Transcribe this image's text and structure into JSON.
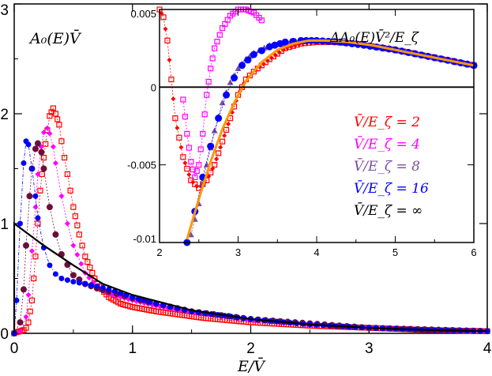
{
  "chart_data": [
    {
      "type": "scatter",
      "title": "",
      "xlabel": "E/V̄",
      "ylabel": "",
      "xlim": [
        0,
        4
      ],
      "ylim": [
        0,
        3
      ],
      "grid": false,
      "annotation": "A₀(E)V̄",
      "x_ticks": [
        "0",
        "1",
        "2",
        "3",
        "4"
      ],
      "y_ticks": [
        "0",
        "1",
        "2",
        "3"
      ],
      "series": [
        {
          "name": "V̄/E_ζ = 2",
          "color": "#ff0000",
          "x": [
            0.0,
            0.02,
            0.05,
            0.08,
            0.1,
            0.12,
            0.15,
            0.18,
            0.2,
            0.22,
            0.25,
            0.28,
            0.3,
            0.33,
            0.35,
            0.38,
            0.4,
            0.45,
            0.5,
            0.55,
            0.6,
            0.7,
            0.8,
            0.9,
            1.0,
            1.2,
            1.4,
            1.6,
            1.8,
            2.0,
            2.5,
            3.0,
            3.5,
            4.0
          ],
          "y": [
            0.0,
            0.01,
            0.02,
            0.03,
            0.05,
            0.1,
            0.3,
            0.7,
            1.0,
            1.3,
            1.6,
            1.85,
            1.98,
            2.05,
            2.0,
            1.9,
            1.75,
            1.45,
            1.15,
            0.9,
            0.7,
            0.45,
            0.33,
            0.27,
            0.24,
            0.2,
            0.17,
            0.14,
            0.12,
            0.1,
            0.07,
            0.05,
            0.03,
            0.02
          ]
        },
        {
          "name": "V̄/E_ζ = 4",
          "color": "#ff00ff",
          "x": [
            0.0,
            0.05,
            0.1,
            0.12,
            0.15,
            0.18,
            0.2,
            0.23,
            0.25,
            0.28,
            0.3,
            0.33,
            0.35,
            0.4,
            0.45,
            0.5,
            0.6,
            0.7,
            0.8,
            1.0,
            1.2,
            1.5,
            2.0,
            2.5,
            3.0,
            4.0
          ],
          "y": [
            0.0,
            0.02,
            0.15,
            0.35,
            0.75,
            1.15,
            1.45,
            1.7,
            1.83,
            1.87,
            1.82,
            1.7,
            1.55,
            1.25,
            1.0,
            0.8,
            0.55,
            0.42,
            0.36,
            0.3,
            0.25,
            0.19,
            0.12,
            0.08,
            0.05,
            0.02
          ]
        },
        {
          "name": "V̄/E_ζ = 8",
          "color": "#6b0f3a",
          "x": [
            0.0,
            0.05,
            0.08,
            0.1,
            0.13,
            0.15,
            0.18,
            0.2,
            0.23,
            0.25,
            0.3,
            0.35,
            0.4,
            0.5,
            0.6,
            0.7,
            0.8,
            1.0,
            1.2,
            1.5,
            2.0,
            2.5,
            3.0,
            4.0
          ],
          "y": [
            0.0,
            0.1,
            0.4,
            0.8,
            1.25,
            1.5,
            1.68,
            1.73,
            1.65,
            1.5,
            1.15,
            0.9,
            0.72,
            0.53,
            0.45,
            0.41,
            0.38,
            0.32,
            0.27,
            0.2,
            0.13,
            0.09,
            0.05,
            0.02
          ]
        },
        {
          "name": "V̄/E_ζ = 16",
          "color": "#0000ff",
          "x": [
            0.0,
            0.02,
            0.05,
            0.08,
            0.1,
            0.12,
            0.15,
            0.18,
            0.2,
            0.25,
            0.3,
            0.35,
            0.4,
            0.5,
            0.6,
            0.7,
            0.8,
            1.0,
            1.2,
            1.5,
            2.0,
            2.5,
            3.0,
            3.5,
            4.0
          ],
          "y": [
            0.0,
            0.3,
            1.0,
            1.55,
            1.75,
            1.72,
            1.5,
            1.25,
            1.05,
            0.78,
            0.62,
            0.54,
            0.5,
            0.47,
            0.45,
            0.43,
            0.4,
            0.33,
            0.27,
            0.2,
            0.13,
            0.08,
            0.05,
            0.03,
            0.02
          ]
        },
        {
          "name": "V̄/E_ζ = ∞",
          "color": "#000000",
          "x": [
            0.0,
            0.0,
            0.25,
            0.5,
            0.75,
            1.0,
            1.25,
            1.5,
            2.0,
            2.5,
            3.0,
            3.5,
            4.0
          ],
          "y": [
            0.0,
            1.0,
            0.8,
            0.62,
            0.45,
            0.35,
            0.28,
            0.21,
            0.13,
            0.08,
            0.05,
            0.03,
            0.02
          ]
        }
      ]
    },
    {
      "type": "scatter",
      "title": "",
      "xlabel": "",
      "ylabel": "",
      "annotation": "ΔA₀(E)V̄²/E_ζ",
      "xlim": [
        2,
        6
      ],
      "ylim": [
        -0.01,
        0.005
      ],
      "x_ticks": [
        "2",
        "3",
        "4",
        "5",
        "6"
      ],
      "y_ticks": [
        "0.005",
        "0",
        "-0.005",
        "-0.01"
      ],
      "y_tick_values": [
        0.005,
        0,
        -0.005,
        -0.01
      ],
      "grid": false,
      "zero_line": true,
      "legend_placement": "right",
      "legend": [
        "V̄/E_ζ = 2",
        "V̄/E_ζ = 4",
        "V̄/E_ζ = 8",
        "V̄/E_ζ = 16",
        "V̄/E_ζ = ∞"
      ],
      "series": [
        {
          "name": "V̄/E_ζ = 2",
          "color": "#ff0000",
          "x": [
            2.0,
            2.05,
            2.1,
            2.15,
            2.2,
            2.3,
            2.4,
            2.5,
            2.6,
            2.7,
            2.8,
            2.9,
            3.0,
            3.1,
            3.2,
            3.4,
            3.6,
            3.8,
            4.0,
            4.2,
            4.5,
            5.0,
            5.5,
            6.0
          ],
          "y": [
            0.005,
            0.0045,
            0.003,
            0.0005,
            -0.002,
            -0.0045,
            -0.006,
            -0.0065,
            -0.006,
            -0.005,
            -0.0035,
            -0.002,
            -0.0005,
            0.0005,
            0.001,
            0.0018,
            0.0025,
            0.0028,
            0.0029,
            0.0029,
            0.0028,
            0.0024,
            0.0019,
            0.0014
          ]
        },
        {
          "name": "V̄/E_ζ = 4",
          "color": "#ff00ff",
          "x": [
            2.3,
            2.35,
            2.4,
            2.45,
            2.5,
            2.55,
            2.6,
            2.65,
            2.7,
            2.8,
            2.9,
            3.0,
            3.1,
            3.2,
            3.3
          ],
          "y": [
            -0.0008,
            -0.003,
            -0.0048,
            -0.0058,
            -0.005,
            -0.003,
            -0.0005,
            0.0012,
            0.0025,
            0.0038,
            0.0046,
            0.005,
            0.005,
            0.0048,
            0.0043
          ]
        },
        {
          "name": "V̄/E_ζ = 8",
          "color": "#7b4fa0",
          "x": [
            2.4,
            2.5,
            2.6,
            2.7,
            2.8,
            2.9,
            3.0,
            3.1,
            3.2,
            3.4,
            3.6,
            3.8,
            4.0,
            4.5,
            5.0,
            5.5,
            6.0
          ],
          "y": [
            -0.0095,
            -0.0075,
            -0.005,
            -0.0028,
            -0.001,
            0.0003,
            0.0012,
            0.0018,
            0.0022,
            0.0027,
            0.0029,
            0.003,
            0.003,
            0.0028,
            0.0024,
            0.0019,
            0.0014
          ]
        },
        {
          "name": "V̄/E_ζ = 16",
          "color": "#0000ff",
          "x": [
            2.35,
            2.45,
            2.55,
            2.65,
            2.75,
            2.85,
            2.95,
            3.05,
            3.2,
            3.4,
            3.6,
            3.8,
            4.0,
            4.3,
            4.6,
            5.0,
            5.5,
            6.0
          ],
          "y": [
            -0.01,
            -0.008,
            -0.0058,
            -0.0038,
            -0.002,
            -0.0005,
            0.0006,
            0.0014,
            0.0021,
            0.0026,
            0.0029,
            0.003,
            0.003,
            0.0029,
            0.0027,
            0.0024,
            0.0019,
            0.0014
          ]
        },
        {
          "name": "V̄/E_ζ = ∞",
          "color": "#ff9900",
          "x": [
            2.35,
            2.5,
            2.65,
            2.8,
            2.95,
            3.1,
            3.3,
            3.5,
            3.7,
            3.9,
            4.1,
            4.4,
            4.7,
            5.0,
            5.5,
            6.0
          ],
          "y": [
            -0.0098,
            -0.0072,
            -0.0048,
            -0.0027,
            -0.001,
            0.0004,
            0.0016,
            0.0024,
            0.0028,
            0.003,
            0.003,
            0.0029,
            0.0027,
            0.0024,
            0.0019,
            0.0014
          ]
        }
      ]
    }
  ]
}
